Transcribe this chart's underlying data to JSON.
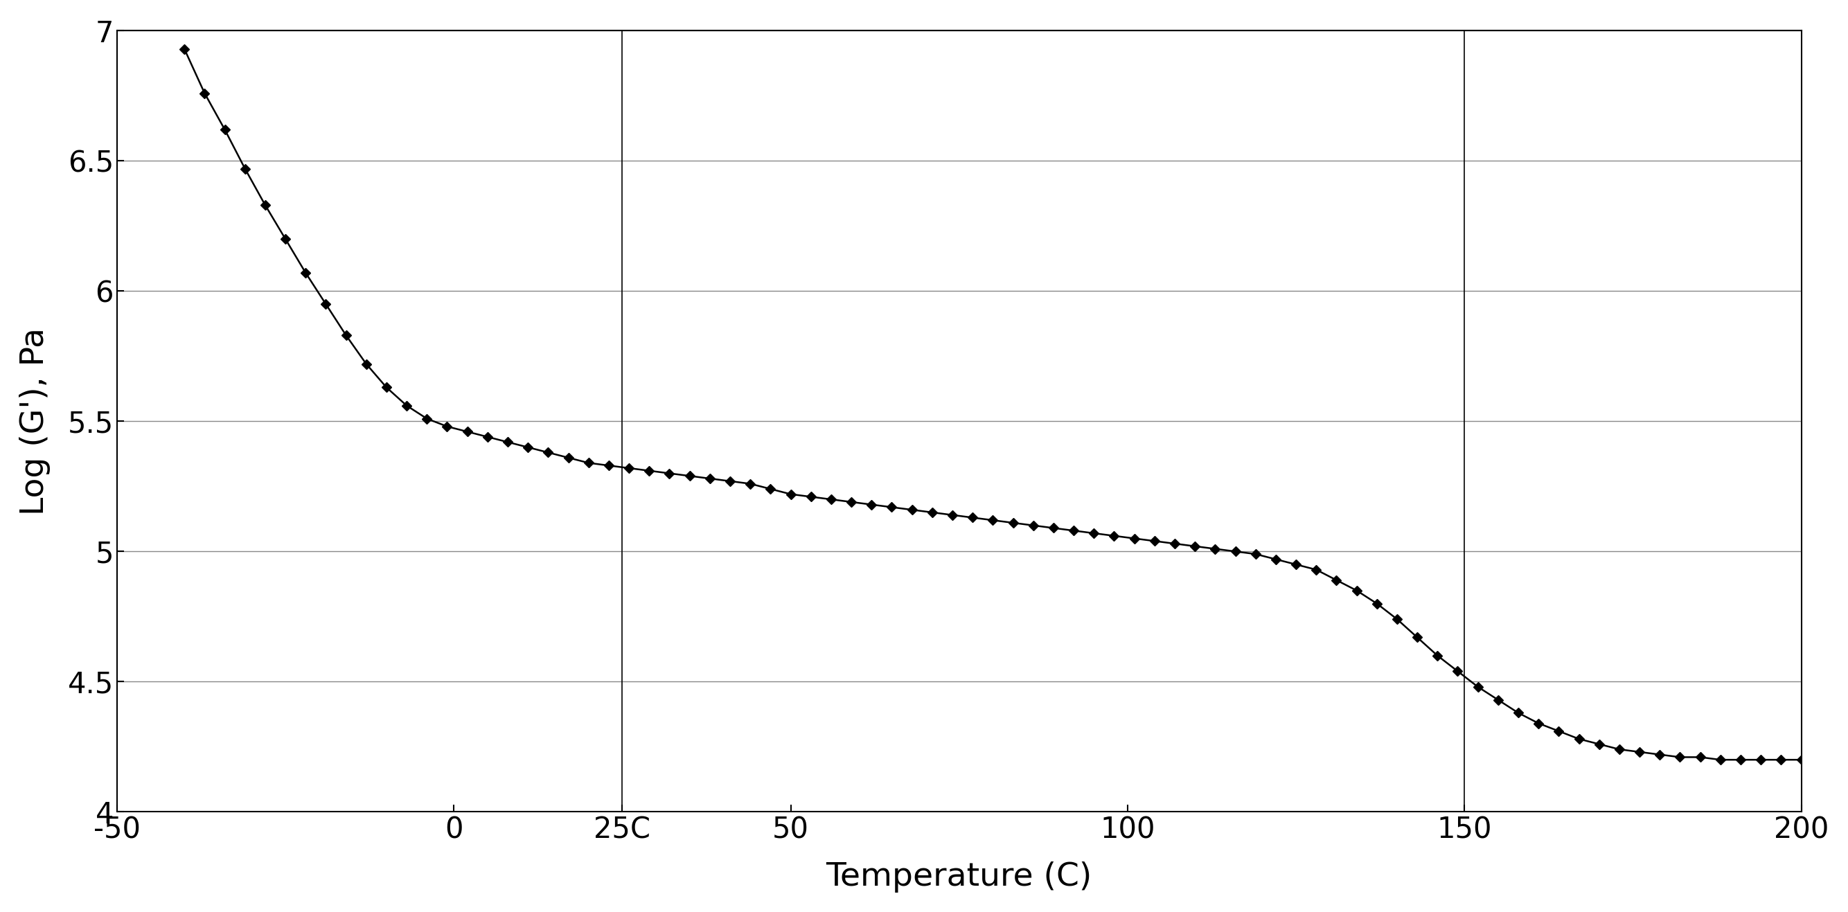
{
  "title": "",
  "xlabel": "Temperature (C)",
  "ylabel": "Log (G'), Pa",
  "xlim": [
    -50,
    200
  ],
  "ylim": [
    4.0,
    7.0
  ],
  "xticks": [
    -50,
    0,
    25,
    50,
    100,
    150,
    200
  ],
  "xtick_labels": [
    "-50",
    "0",
    "25C",
    "50",
    "100",
    "150",
    "200"
  ],
  "yticks": [
    4.0,
    4.5,
    5.0,
    5.5,
    6.0,
    6.5,
    7.0
  ],
  "vlines": [
    25,
    150
  ],
  "line_color": "#000000",
  "marker": "D",
  "marker_size": 7,
  "background_color": "#ffffff",
  "grid_color": "#888888",
  "x_data": [
    -40,
    -37,
    -34,
    -31,
    -28,
    -25,
    -22,
    -19,
    -16,
    -13,
    -10,
    -7,
    -4,
    -1,
    2,
    5,
    8,
    11,
    14,
    17,
    20,
    23,
    26,
    29,
    32,
    35,
    38,
    41,
    44,
    47,
    50,
    53,
    56,
    59,
    62,
    65,
    68,
    71,
    74,
    77,
    80,
    83,
    86,
    89,
    92,
    95,
    98,
    101,
    104,
    107,
    110,
    113,
    116,
    119,
    122,
    125,
    128,
    131,
    134,
    137,
    140,
    143,
    146,
    149,
    152,
    155,
    158,
    161,
    164,
    167,
    170,
    173,
    176,
    179,
    182,
    185,
    188,
    191,
    194,
    197,
    200
  ],
  "y_data": [
    6.93,
    6.76,
    6.62,
    6.47,
    6.33,
    6.2,
    6.07,
    5.95,
    5.83,
    5.72,
    5.63,
    5.56,
    5.51,
    5.48,
    5.46,
    5.44,
    5.42,
    5.4,
    5.38,
    5.36,
    5.34,
    5.33,
    5.32,
    5.31,
    5.3,
    5.29,
    5.28,
    5.27,
    5.26,
    5.24,
    5.22,
    5.21,
    5.2,
    5.19,
    5.18,
    5.17,
    5.16,
    5.15,
    5.14,
    5.13,
    5.12,
    5.11,
    5.1,
    5.09,
    5.08,
    5.07,
    5.06,
    5.05,
    5.04,
    5.03,
    5.02,
    5.01,
    5.0,
    4.99,
    4.97,
    4.95,
    4.93,
    4.89,
    4.85,
    4.8,
    4.74,
    4.67,
    4.6,
    4.54,
    4.48,
    4.43,
    4.38,
    4.34,
    4.31,
    4.28,
    4.26,
    4.24,
    4.23,
    4.22,
    4.21,
    4.21,
    4.2,
    4.2,
    4.2,
    4.2,
    4.2
  ]
}
